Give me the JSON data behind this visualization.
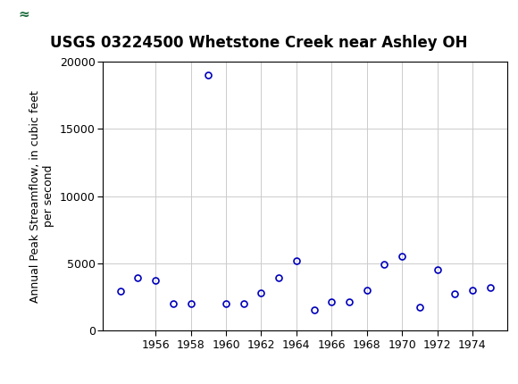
{
  "title": "USGS 03224500 Whetstone Creek near Ashley OH",
  "ylabel": "Annual Peak Streamflow, in cubic feet\nper second",
  "xlabel": "",
  "years": [
    1954,
    1955,
    1956,
    1957,
    1958,
    1959,
    1960,
    1961,
    1962,
    1963,
    1964,
    1965,
    1966,
    1967,
    1968,
    1969,
    1970,
    1971,
    1972,
    1973,
    1974,
    1975
  ],
  "values": [
    2900,
    3900,
    3700,
    2000,
    2000,
    19000,
    2000,
    2000,
    2800,
    3900,
    5200,
    1500,
    2100,
    2100,
    3000,
    4950,
    5500,
    1700,
    4500,
    2700,
    3000,
    3200
  ],
  "xlim": [
    1953,
    1976
  ],
  "ylim": [
    0,
    20000
  ],
  "yticks": [
    0,
    5000,
    10000,
    15000,
    20000
  ],
  "xticks": [
    1956,
    1958,
    1960,
    1962,
    1964,
    1966,
    1968,
    1970,
    1972,
    1974
  ],
  "marker_color": "#0000bb",
  "marker_facecolor": "none",
  "marker_size": 5,
  "marker_style": "o",
  "grid_color": "#cccccc",
  "bg_color": "#ffffff",
  "header_color": "#1a6b3c",
  "title_fontsize": 12,
  "label_fontsize": 9,
  "tick_fontsize": 9,
  "fig_width": 5.8,
  "fig_height": 4.3
}
